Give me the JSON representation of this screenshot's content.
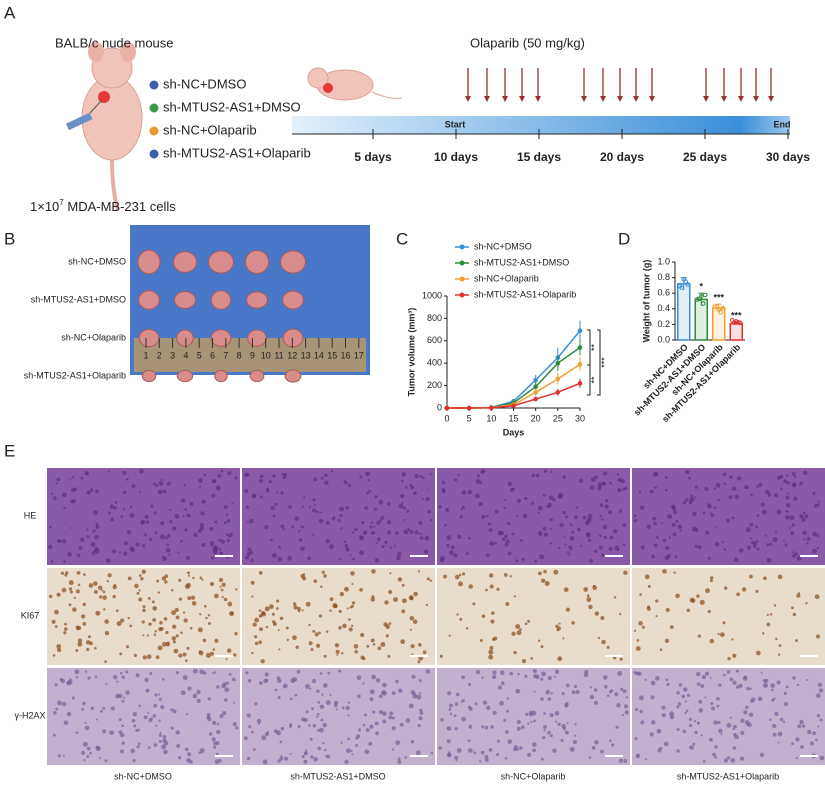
{
  "panel_labels": [
    "A",
    "B",
    "C",
    "D",
    "E"
  ],
  "panel_a": {
    "model": "BALB/c nude mouse",
    "treatment": "Olaparib (50 mg/kg)",
    "groups": [
      "sh-NC+DMSO",
      "sh-MTUS2-AS1+DMSO",
      "sh-NC+Olaparib",
      "sh-MTUS2-AS1+Olaparib"
    ],
    "group_colors": [
      "#3a5fa8",
      "#3a9a4a",
      "#e89a2a",
      "#3a5fa8"
    ],
    "cells": {
      "base": "1×10",
      "exponent": "7",
      "rest": " MDA-MB-231 cells"
    },
    "start": "Start",
    "end": "End",
    "timeline": [
      "5 days",
      "10 days",
      "15 days",
      "20 days",
      "25 days",
      "30 days"
    ]
  },
  "panel_b": {
    "rows": [
      "sh-NC+DMSO",
      "sh-MTUS2-AS1+DMSO",
      "sh-NC+Olaparib",
      "sh-MTUS2-AS1+Olaparib"
    ],
    "ruler": [
      1,
      2,
      3,
      4,
      5,
      6,
      7,
      8,
      9,
      10,
      11,
      12,
      13,
      14,
      15,
      16,
      17
    ]
  },
  "chart_data": [
    {
      "type": "line",
      "x": [
        0,
        5,
        10,
        15,
        20,
        25,
        30
      ],
      "xlabel": "Days",
      "ylabel": "Tumor volume (mm³)",
      "xlim": [
        0,
        30
      ],
      "xticks": [
        0,
        5,
        10,
        15,
        20,
        25,
        30
      ],
      "ylim": [
        0,
        1000
      ],
      "yticks": [
        0,
        200,
        400,
        600,
        800,
        1000
      ],
      "series": [
        {
          "name": "sh-NC+DMSO",
          "color": "#3a8fd9",
          "values": [
            0,
            0,
            5,
            60,
            250,
            450,
            690
          ],
          "errors": [
            0,
            0,
            3,
            15,
            45,
            90,
            90
          ]
        },
        {
          "name": "sh-MTUS2-AS1+DMSO",
          "color": "#2e8b3c",
          "values": [
            0,
            0,
            3,
            45,
            190,
            400,
            540
          ],
          "errors": [
            0,
            0,
            2,
            12,
            35,
            70,
            70
          ]
        },
        {
          "name": "sh-NC+Olaparib",
          "color": "#f0a030",
          "values": [
            0,
            0,
            2,
            30,
            140,
            260,
            390
          ],
          "errors": [
            0,
            0,
            2,
            10,
            30,
            50,
            60
          ]
        },
        {
          "name": "sh-MTUS2-AS1+Olaparib",
          "color": "#e03030",
          "values": [
            0,
            0,
            1,
            20,
            80,
            140,
            220
          ],
          "errors": [
            0,
            0,
            1,
            8,
            20,
            30,
            40
          ]
        }
      ],
      "annotations": [
        "**",
        "***",
        "**"
      ]
    },
    {
      "type": "bar",
      "ylabel": "Weight of tumor (g)",
      "categories": [
        "sh-NC+DMSO",
        "sh-MTUS2-AS1+DMSO",
        "sh-NC+Olaparib",
        "sh-MTUS2-AS1+Olaparib"
      ],
      "values": [
        0.72,
        0.52,
        0.41,
        0.21
      ],
      "errors": [
        0.08,
        0.08,
        0.05,
        0.02
      ],
      "colors": [
        "#3a8fd9",
        "#2e8b3c",
        "#f0a030",
        "#e03030"
      ],
      "significance": [
        null,
        "*",
        "***",
        "***"
      ],
      "ylim": [
        0,
        1.0
      ],
      "yticks": [
        {
          "value": 0,
          "label": "0.0"
        },
        0.2,
        0.4,
        0.6,
        0.8,
        {
          "value": 1,
          "label": "1.0"
        }
      ]
    }
  ],
  "panel_e": {
    "rows": [
      "HE",
      "KI67",
      "γ-H2AX"
    ],
    "columns": [
      "sh-NC+DMSO",
      "sh-MTUS2-AS1+DMSO",
      "sh-NC+Olaparib",
      "sh-MTUS2-AS1+Olaparib"
    ]
  }
}
